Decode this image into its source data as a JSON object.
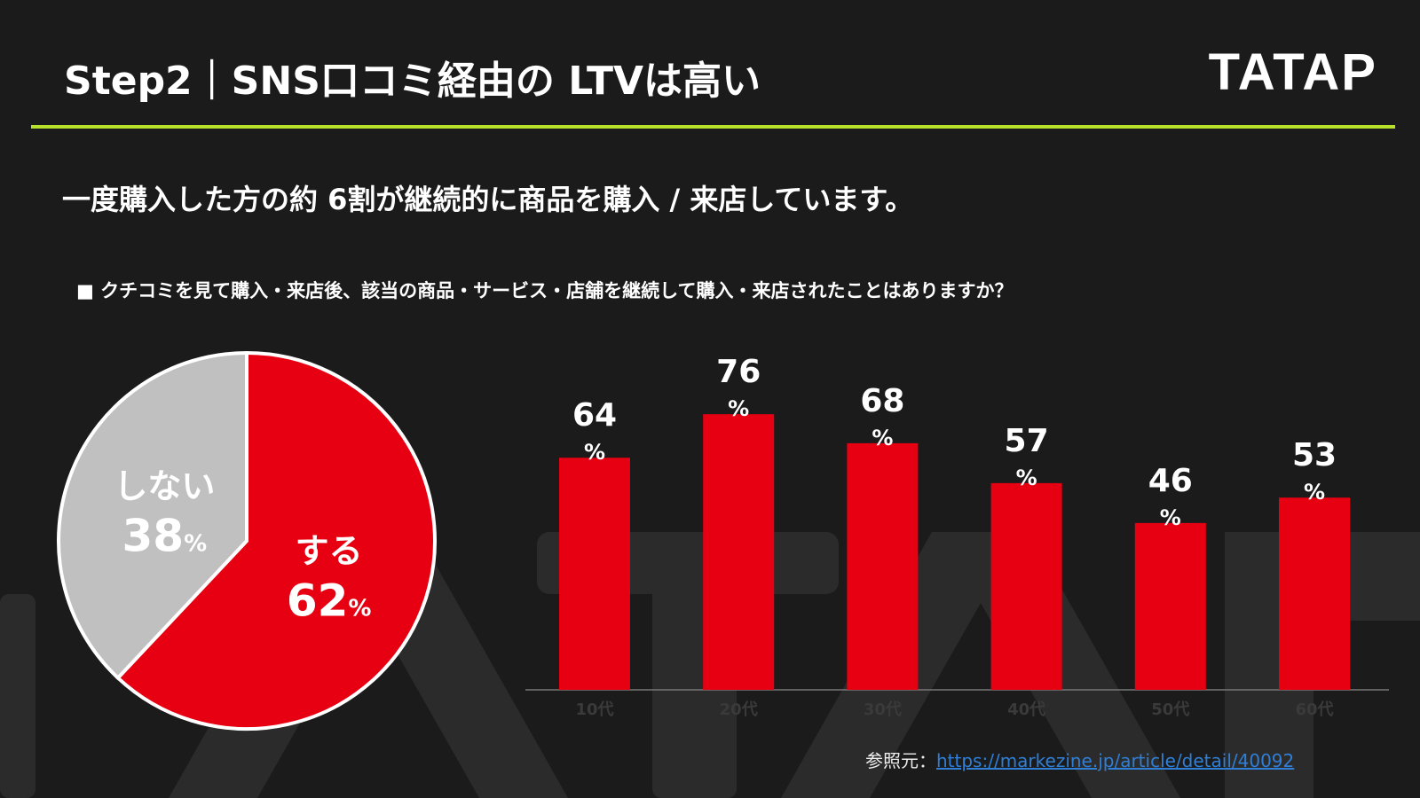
{
  "header": {
    "title": "Step2｜SNS口コミ経由の LTVは高い",
    "logo": "TATAP"
  },
  "watermark": "TATAP",
  "subtitle": "一度購入した方の約 6割が継続的に商品を購入 / 来店しています。",
  "question": "■ クチコミを見て購入・来店後、該当の商品・サービス・店舗を継続して購入・来店されたことはありますか？",
  "colors": {
    "accent": "#e60012",
    "gray": "#c0c0c0",
    "rule": "#b6e02c",
    "link": "#2f7fd6"
  },
  "chart_data": [
    {
      "type": "pie",
      "slices": [
        {
          "label": "する",
          "value": 62,
          "unit": "%"
        },
        {
          "label": "しない",
          "value": 38,
          "unit": "%"
        }
      ]
    },
    {
      "type": "bar",
      "categories": [
        "10代",
        "20代",
        "30代",
        "40代",
        "50代",
        "60代"
      ],
      "values": [
        64,
        76,
        68,
        57,
        46,
        53
      ],
      "unit": "%",
      "ylim": [
        0,
        100
      ]
    }
  ],
  "source": {
    "label": "参照元：",
    "url": "https://markezine.jp/article/detail/40092"
  }
}
